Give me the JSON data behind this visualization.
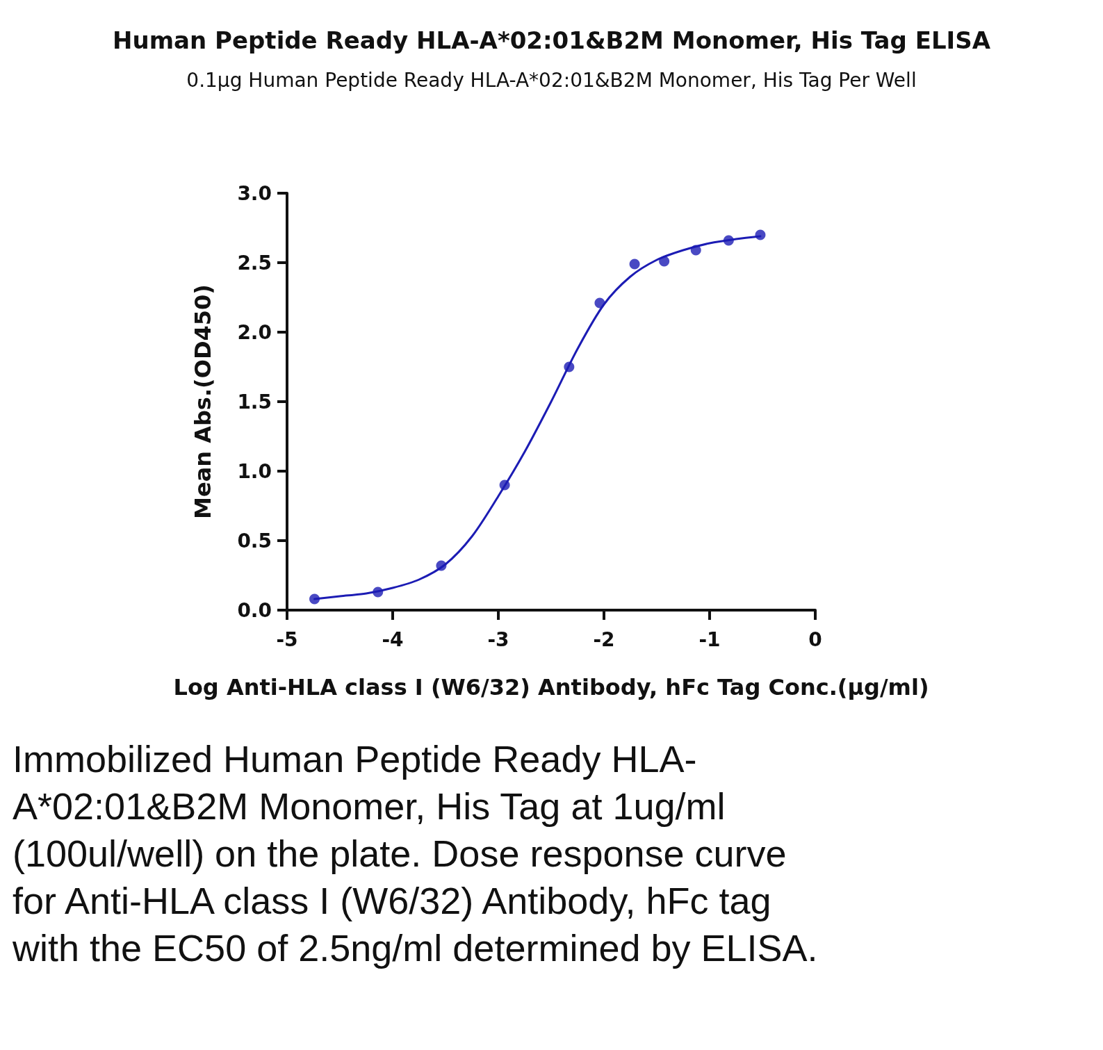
{
  "chart_data": {
    "type": "scatter",
    "title": "Human Peptide Ready HLA-A*02:01&B2M Monomer, His Tag ELISA",
    "subtitle": "0.1μg Human Peptide Ready HLA-A*02:01&B2M Monomer, His Tag Per Well",
    "xlabel": "Log Anti-HLA class I (W6/32) Antibody, hFc Tag Conc.(μg/ml)",
    "ylabel": "Mean Abs.(OD450)",
    "xlim": [
      -5,
      0
    ],
    "xticks": [
      -5,
      -4,
      -3,
      -2,
      -1,
      0
    ],
    "ylim": [
      0,
      3
    ],
    "yticks": [
      {
        "value": 0,
        "label": "0.0"
      },
      {
        "value": 0.5,
        "label": "0.5"
      },
      {
        "value": 1,
        "label": "1.0"
      },
      {
        "value": 1.5,
        "label": "1.5"
      },
      {
        "value": 2,
        "label": "2.0"
      },
      {
        "value": 2.5,
        "label": "2.5"
      },
      {
        "value": 3,
        "label": "3.0"
      }
    ],
    "grid": false,
    "series": [
      {
        "marker": "circle",
        "color": "#1c1cb4",
        "x": [
          -4.74,
          -4.14,
          -3.54,
          -2.94,
          -2.33,
          -2.04,
          -1.71,
          -1.43,
          -1.13,
          -0.82,
          -0.52
        ],
        "values": [
          0.08,
          0.13,
          0.32,
          0.9,
          1.75,
          2.21,
          2.49,
          2.51,
          2.59,
          2.66,
          2.7
        ]
      },
      {
        "type": "line",
        "marker": "none",
        "line_style": "solid",
        "color": "#1c1cb4",
        "x": [
          -4.74,
          -4.5,
          -4.25,
          -4.0,
          -3.75,
          -3.5,
          -3.25,
          -3.0,
          -2.75,
          -2.5,
          -2.25,
          -2.0,
          -1.75,
          -1.5,
          -1.25,
          -1.0,
          -0.75,
          -0.52
        ],
        "values": [
          0.08,
          0.1,
          0.12,
          0.16,
          0.22,
          0.33,
          0.53,
          0.82,
          1.14,
          1.5,
          1.88,
          2.2,
          2.4,
          2.52,
          2.59,
          2.64,
          2.67,
          2.69
        ]
      }
    ],
    "annotations": [
      "Immobilized Human Peptide Ready HLA-A*02:01&B2M Monomer, His Tag at 1ug/ml (100ul/well) on the plate. Dose response curve for Anti-HLA class I (W6/32) Antibody, hFc tag with the EC50 of 2.5ng/ml determined by ELISA."
    ]
  }
}
